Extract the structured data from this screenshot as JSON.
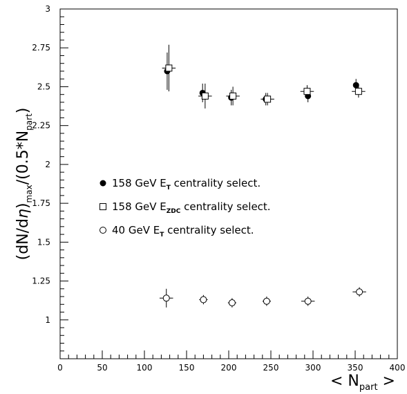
{
  "chart_data": {
    "type": "scatter",
    "xlim": [
      0,
      400
    ],
    "ylim": [
      0.75,
      3
    ],
    "x_ticks": [
      "0",
      "50",
      "100",
      "150",
      "200",
      "250",
      "300",
      "350",
      "400"
    ],
    "y_ticks": [
      "1",
      "1.25",
      "1.5",
      "1.75",
      "2",
      "2.25",
      "2.5",
      "2.75",
      "3"
    ],
    "xlabel": {
      "pre": "< N",
      "sub": "part",
      "post": " >"
    },
    "ylabel": {
      "a": "(dN/d",
      "eta": "η",
      "b": ")",
      "sub1": "max",
      "c": "/(0.5*N",
      "sub2": "part",
      "d": ")"
    },
    "grid": false,
    "legend_position": "center-left",
    "series": [
      {
        "name": {
          "pre": "158 GeV E",
          "sub": "T",
          "post": " centrality select."
        },
        "marker": "filled-circle",
        "points": [
          {
            "x": 127,
            "y": 2.6,
            "yerr": 0.12,
            "xerr": 0
          },
          {
            "x": 169,
            "y": 2.46,
            "yerr": 0.06,
            "xerr": 0
          },
          {
            "x": 203,
            "y": 2.43,
            "yerr": 0.05,
            "xerr": 0
          },
          {
            "x": 244,
            "y": 2.42,
            "yerr": 0.04,
            "xerr": 0
          },
          {
            "x": 294,
            "y": 2.44,
            "yerr": 0.04,
            "xerr": 0
          },
          {
            "x": 351,
            "y": 2.51,
            "yerr": 0.04,
            "xerr": 0
          }
        ]
      },
      {
        "name": {
          "pre": "158 GeV E",
          "sub": "ZDC",
          "post": " centrality select."
        },
        "marker": "open-square",
        "points": [
          {
            "x": 129,
            "y": 2.62,
            "yerr": 0.15,
            "xerr": 8
          },
          {
            "x": 172,
            "y": 2.44,
            "yerr": 0.08,
            "xerr": 8
          },
          {
            "x": 205,
            "y": 2.44,
            "yerr": 0.06,
            "xerr": 8
          },
          {
            "x": 246,
            "y": 2.42,
            "yerr": 0.04,
            "xerr": 8
          },
          {
            "x": 293,
            "y": 2.47,
            "yerr": 0.04,
            "xerr": 8
          },
          {
            "x": 354,
            "y": 2.47,
            "yerr": 0.04,
            "xerr": 8
          }
        ]
      },
      {
        "name": {
          "pre": "40 GeV E",
          "sub": "T",
          "post": " centrality select."
        },
        "marker": "open-circle",
        "points": [
          {
            "x": 126,
            "y": 1.14,
            "yerr": 0.06,
            "xerr": 8
          },
          {
            "x": 170,
            "y": 1.13,
            "yerr": 0.03,
            "xerr": 5
          },
          {
            "x": 204,
            "y": 1.11,
            "yerr": 0.03,
            "xerr": 5
          },
          {
            "x": 245,
            "y": 1.12,
            "yerr": 0.03,
            "xerr": 5
          },
          {
            "x": 294,
            "y": 1.12,
            "yerr": 0.03,
            "xerr": 8
          },
          {
            "x": 355,
            "y": 1.18,
            "yerr": 0.03,
            "xerr": 8
          }
        ]
      }
    ]
  }
}
